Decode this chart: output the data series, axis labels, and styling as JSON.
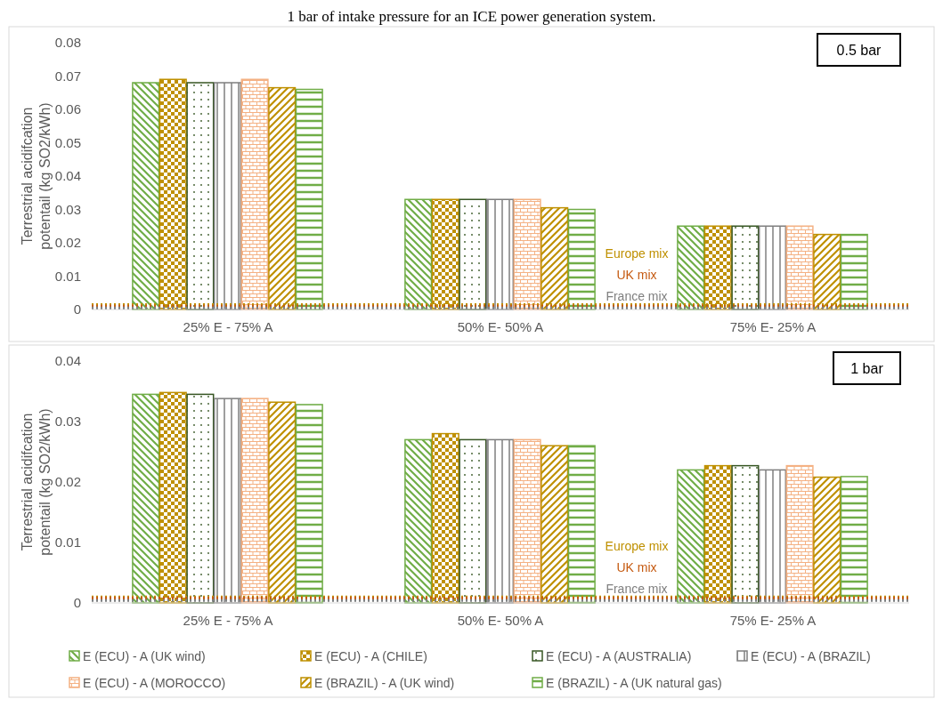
{
  "chart_data": [
    {
      "type": "bar",
      "title": "1 bar of intake pressure for an ICE power generation system.",
      "ylabel": "Terrestrial acidifcation potentail (kg SO2/kWh)",
      "categories": [
        "25% E - 75% A",
        "50% E- 50% A",
        "75% E- 25% A"
      ],
      "ylim": [
        0,
        0.08
      ],
      "yticks": [
        0,
        0.01,
        0.02,
        0.03,
        0.04,
        0.05,
        0.06,
        0.07,
        0.08
      ],
      "grid": false,
      "legend": false,
      "annotations": [
        "0.5 bar"
      ],
      "series": [
        {
          "color": "#70ad47",
          "values": [
            0.068,
            0.033,
            0.025
          ]
        },
        {
          "color": "#bf9000",
          "values": [
            0.069,
            0.033,
            0.025
          ]
        },
        {
          "color": "#375623",
          "values": [
            0.068,
            0.033,
            0.025
          ]
        },
        {
          "color": "#7f7f7f",
          "values": [
            0.068,
            0.033,
            0.025
          ]
        },
        {
          "color": "#f4b183",
          "values": [
            0.069,
            0.033,
            0.025
          ]
        },
        {
          "color": "#bf9000",
          "values": [
            0.0665,
            0.0305,
            0.0225
          ]
        },
        {
          "color": "#70ad47",
          "values": [
            0.066,
            0.03,
            0.0225
          ]
        }
      ],
      "ref_lines": [
        {
          "axis": "y",
          "value": 0.0015,
          "label": "Europe mix",
          "color": "#bf9000",
          "line_style": "dotted"
        },
        {
          "axis": "y",
          "value": 0.001,
          "label": "UK mix",
          "color": "#c55a11",
          "line_style": "dotted"
        },
        {
          "axis": "y",
          "value": 0.0005,
          "label": "France mix",
          "color": "#7f7f7f",
          "line_style": "dotted"
        }
      ]
    },
    {
      "type": "bar",
      "ylabel": "Terrestrial acidifcation potentail (kg SO2/kWh)",
      "categories": [
        "25% E - 75% A",
        "50% E- 50% A",
        "75% E- 25% A"
      ],
      "ylim": [
        0,
        0.04
      ],
      "yticks": [
        0,
        0.01,
        0.02,
        0.03,
        0.04
      ],
      "grid": false,
      "legend": "bottom",
      "annotations": [
        "1 bar"
      ],
      "series": [
        {
          "name": "E (ECU) - A (UK wind)",
          "color": "#70ad47",
          "values": [
            0.0345,
            0.027,
            0.022
          ]
        },
        {
          "name": "E (ECU) - A (CHILE)",
          "color": "#bf9000",
          "values": [
            0.0348,
            0.028,
            0.0227
          ]
        },
        {
          "name": "E (ECU) - A (AUSTRALIA)",
          "color": "#375623",
          "values": [
            0.0345,
            0.027,
            0.0227
          ]
        },
        {
          "name": "E (ECU) - A (BRAZIL)",
          "color": "#7f7f7f",
          "values": [
            0.0338,
            0.027,
            0.022
          ]
        },
        {
          "name": "E (ECU) - A (MOROCCO)",
          "color": "#f4b183",
          "values": [
            0.0338,
            0.027,
            0.0227
          ]
        },
        {
          "name": "E (BRAZIL) - A (UK wind)",
          "color": "#bf9000",
          "values": [
            0.0332,
            0.026,
            0.0208
          ]
        },
        {
          "name": "E (BRAZIL) - A (UK natural gas)",
          "color": "#70ad47",
          "values": [
            0.0328,
            0.026,
            0.0209
          ]
        }
      ],
      "ref_lines": [
        {
          "axis": "y",
          "value": 0.001,
          "label": "Europe mix",
          "color": "#bf9000",
          "line_style": "dotted"
        },
        {
          "axis": "y",
          "value": 0.0008,
          "label": "UK mix",
          "color": "#c55a11",
          "line_style": "dotted"
        },
        {
          "axis": "y",
          "value": 0.0004,
          "label": "France mix",
          "color": "#7f7f7f",
          "line_style": "dotted"
        }
      ]
    }
  ]
}
